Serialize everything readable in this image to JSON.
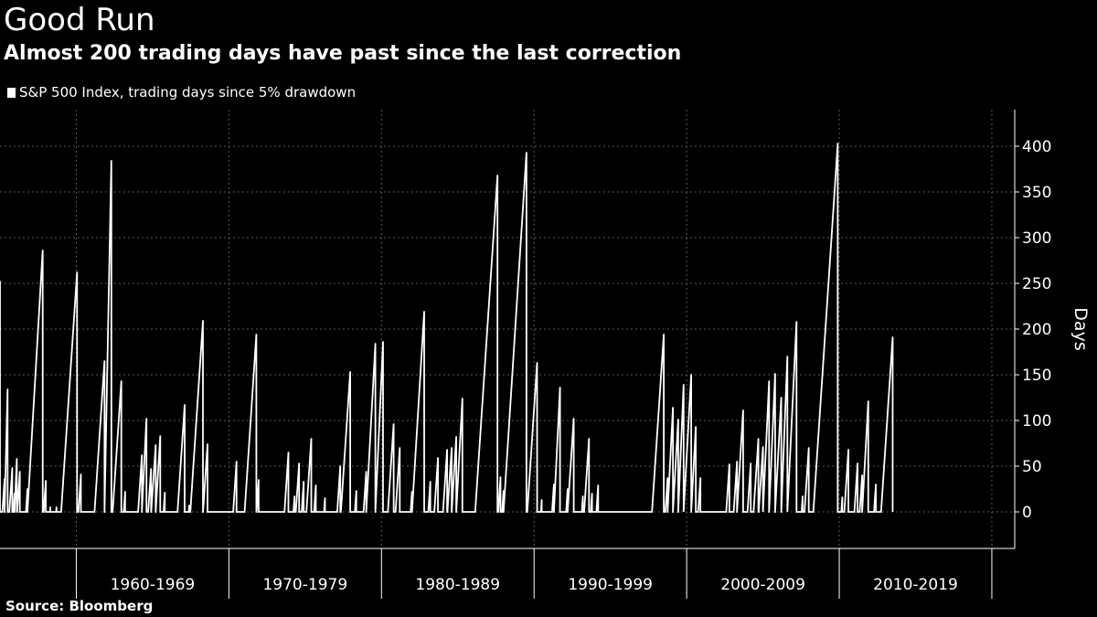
{
  "header": {
    "title": "Good Run",
    "subtitle": "Almost 200 trading days have past since the last correction"
  },
  "legend": {
    "label": "S&P 500 Index, trading days since 5% drawdown"
  },
  "footer": {
    "source": "Source: Bloomberg"
  },
  "colors": {
    "background": "#000000",
    "series": "#ffffff",
    "grid": "#5a5a5a"
  },
  "chart_data": {
    "type": "line",
    "title": "Good Run",
    "subtitle": "Almost 200 trading days have past since the last correction",
    "xlabel": "",
    "ylabel": "Days",
    "ylim": [
      -40,
      440
    ],
    "yticks": [
      0,
      50,
      100,
      150,
      200,
      250,
      300,
      350,
      400
    ],
    "xlim": [
      1955.0,
      2021.5
    ],
    "decade_boundaries": [
      1960,
      1970,
      1980,
      1990,
      2000,
      2010,
      2020
    ],
    "x_tick_labels": [
      "1960-1969",
      "1970-1979",
      "1980-1989",
      "1990-1999",
      "2000-2009",
      "2010-2019"
    ],
    "grid": true,
    "legend_position": "top-left",
    "series": [
      {
        "name": "S&P 500 Index, trading days since 5% drawdown",
        "runs": [
          [
            1955.0,
            252
          ],
          [
            1955.3,
            36
          ],
          [
            1955.5,
            134
          ],
          [
            1955.8,
            48
          ],
          [
            1955.95,
            20
          ],
          [
            1956.1,
            58
          ],
          [
            1956.3,
            44
          ],
          [
            1956.8,
            25
          ],
          [
            1957.8,
            286
          ],
          [
            1958.0,
            34
          ],
          [
            1958.3,
            5
          ],
          [
            1958.7,
            5
          ],
          [
            1960.05,
            262
          ],
          [
            1960.3,
            41
          ],
          [
            1961.85,
            165
          ],
          [
            1962.3,
            384
          ],
          [
            1962.95,
            143
          ],
          [
            1963.2,
            22
          ],
          [
            1964.3,
            62
          ],
          [
            1964.6,
            102
          ],
          [
            1964.9,
            47
          ],
          [
            1965.2,
            73
          ],
          [
            1965.5,
            83
          ],
          [
            1965.8,
            21
          ],
          [
            1967.1,
            117
          ],
          [
            1967.4,
            7
          ],
          [
            1968.3,
            209
          ],
          [
            1968.6,
            74
          ],
          [
            1970.5,
            55
          ],
          [
            1971.8,
            194
          ],
          [
            1971.95,
            35
          ],
          [
            1973.9,
            65
          ],
          [
            1974.3,
            17
          ],
          [
            1974.6,
            53
          ],
          [
            1974.9,
            33
          ],
          [
            1975.4,
            80
          ],
          [
            1975.7,
            29
          ],
          [
            1976.3,
            15
          ],
          [
            1977.3,
            50
          ],
          [
            1977.95,
            153
          ],
          [
            1978.35,
            23
          ],
          [
            1979.0,
            44
          ],
          [
            1979.6,
            184
          ],
          [
            1980.1,
            186
          ],
          [
            1980.8,
            96
          ],
          [
            1981.2,
            70
          ],
          [
            1982.0,
            22
          ],
          [
            1982.8,
            219
          ],
          [
            1983.2,
            33
          ],
          [
            1983.7,
            59
          ],
          [
            1984.3,
            68
          ],
          [
            1984.6,
            70
          ],
          [
            1984.9,
            82
          ],
          [
            1985.3,
            124
          ],
          [
            1987.6,
            368
          ],
          [
            1987.8,
            38
          ],
          [
            1988.0,
            23
          ],
          [
            1989.5,
            393
          ],
          [
            1990.2,
            163
          ],
          [
            1990.5,
            13
          ],
          [
            1991.3,
            30
          ],
          [
            1991.7,
            136
          ],
          [
            1992.2,
            25
          ],
          [
            1992.6,
            102
          ],
          [
            1993.2,
            17
          ],
          [
            1993.6,
            80
          ],
          [
            1993.8,
            20
          ],
          [
            1994.2,
            29
          ],
          [
            1998.5,
            194
          ],
          [
            1998.75,
            37
          ],
          [
            1999.1,
            114
          ],
          [
            1999.45,
            101
          ],
          [
            1999.8,
            139
          ],
          [
            2000.3,
            150
          ],
          [
            2000.6,
            93
          ],
          [
            2000.9,
            37
          ],
          [
            2002.8,
            52
          ],
          [
            2003.3,
            55
          ],
          [
            2003.7,
            111
          ],
          [
            2004.2,
            53
          ],
          [
            2004.7,
            80
          ],
          [
            2005.0,
            71
          ],
          [
            2005.4,
            143
          ],
          [
            2005.8,
            151
          ],
          [
            2006.2,
            125
          ],
          [
            2006.6,
            170
          ],
          [
            2007.2,
            208
          ],
          [
            2007.6,
            17
          ],
          [
            2008.0,
            70
          ],
          [
            2009.9,
            403
          ],
          [
            2010.2,
            16
          ],
          [
            2010.6,
            68
          ],
          [
            2011.2,
            53
          ],
          [
            2011.5,
            40
          ],
          [
            2011.9,
            121
          ],
          [
            2012.4,
            30
          ],
          [
            2013.5,
            191
          ]
        ]
      }
    ]
  }
}
